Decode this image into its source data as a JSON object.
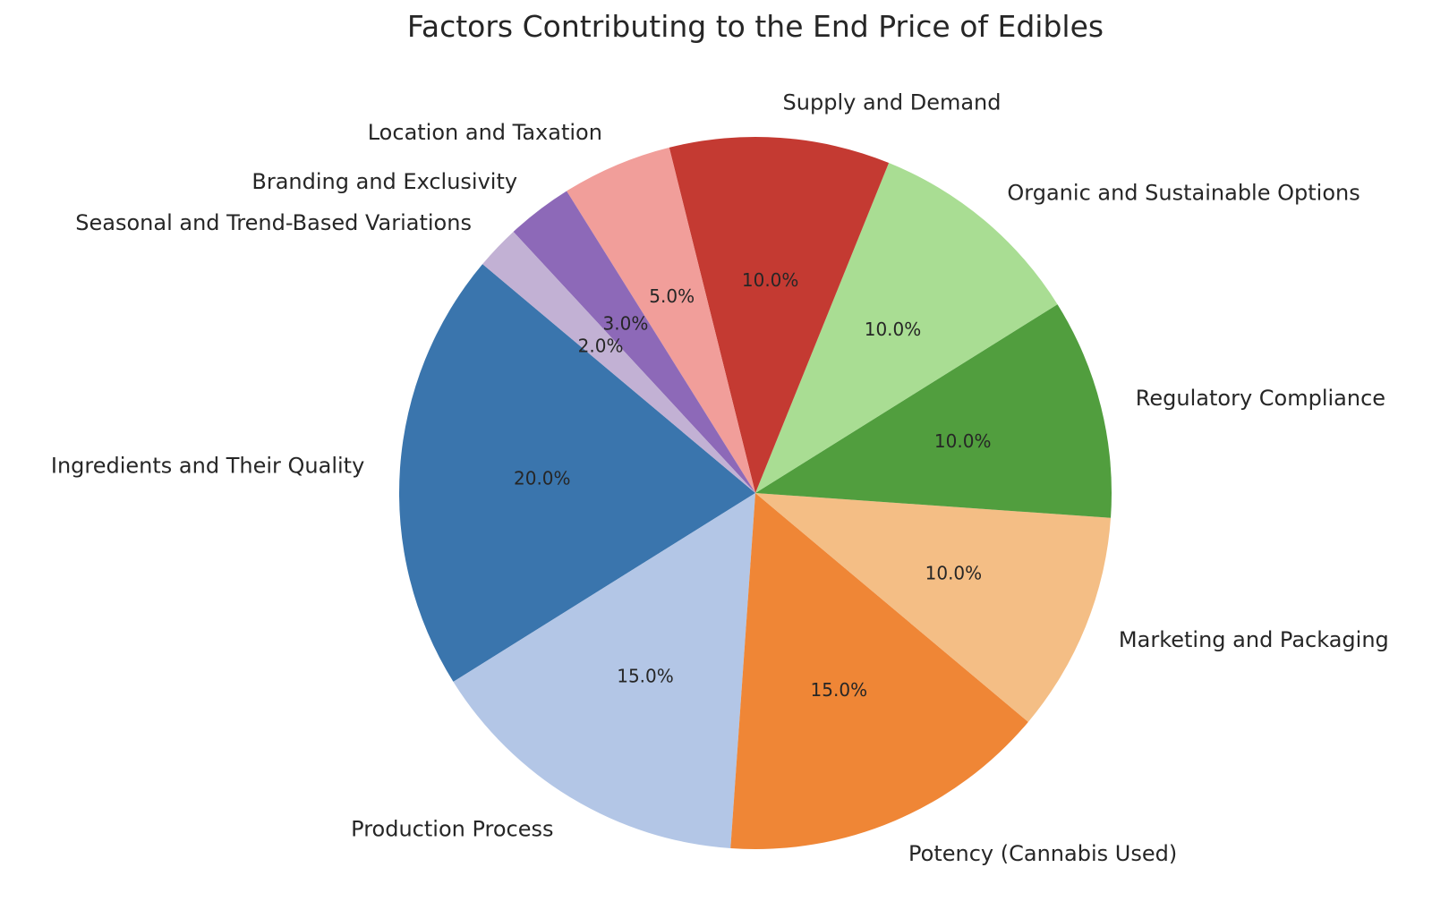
{
  "chart_data": {
    "type": "pie",
    "title": "Factors Contributing to the End Price of Edibles",
    "start_angle_deg": 140,
    "direction": "counterclockwise",
    "autopct_format": "%.1f%%",
    "slices": [
      {
        "label": "Ingredients and Their Quality",
        "value": 20,
        "pct_label": "20.0%",
        "color": "#3a75ad"
      },
      {
        "label": "Production Process",
        "value": 15,
        "pct_label": "15.0%",
        "color": "#b3c6e6"
      },
      {
        "label": "Potency (Cannabis Used)",
        "value": 15,
        "pct_label": "15.0%",
        "color": "#ef8636"
      },
      {
        "label": "Marketing and Packaging",
        "value": 10,
        "pct_label": "10.0%",
        "color": "#f4be85"
      },
      {
        "label": "Regulatory Compliance",
        "value": 10,
        "pct_label": "10.0%",
        "color": "#519e3e"
      },
      {
        "label": "Organic and Sustainable Options",
        "value": 10,
        "pct_label": "10.0%",
        "color": "#a9dd93"
      },
      {
        "label": "Supply and Demand",
        "value": 10,
        "pct_label": "10.0%",
        "color": "#c43a32"
      },
      {
        "label": "Location and Taxation",
        "value": 5,
        "pct_label": "5.0%",
        "color": "#f19e9a"
      },
      {
        "label": "Branding and Exclusivity",
        "value": 3,
        "pct_label": "3.0%",
        "color": "#8d69b8"
      },
      {
        "label": "Seasonal and Trend-Based Variations",
        "value": 2,
        "pct_label": "2.0%",
        "color": "#c2b1d4"
      }
    ]
  }
}
